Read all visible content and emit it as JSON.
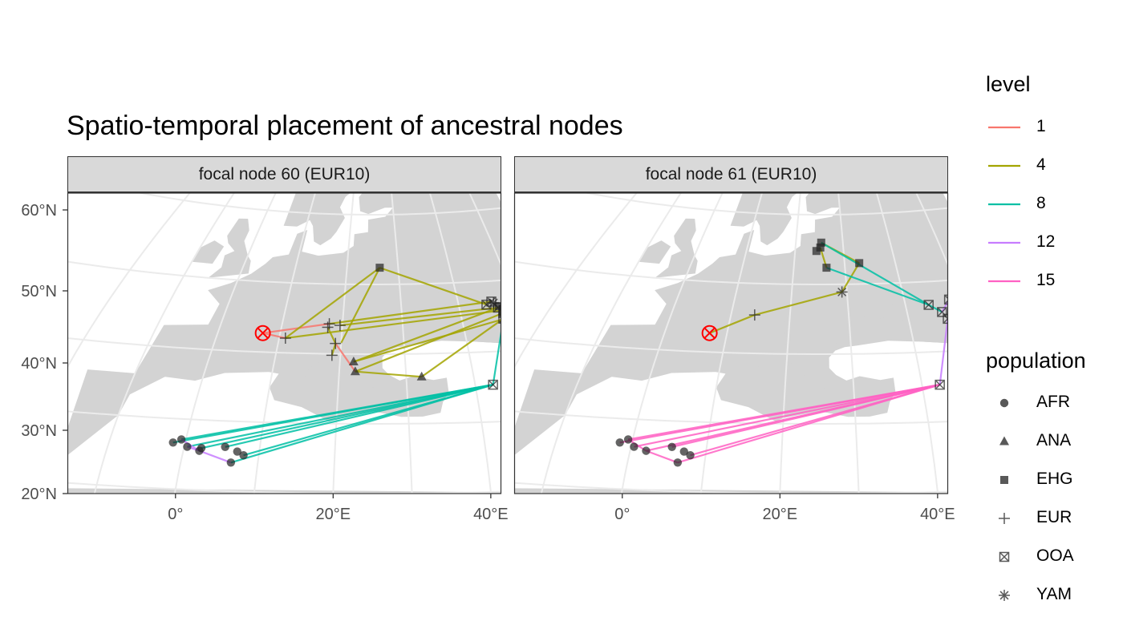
{
  "title": "Spatio-temporal placement of ancestral nodes",
  "panels": [
    {
      "label": "focal node 60 (EUR10)"
    },
    {
      "label": "focal node 61 (EUR10)"
    }
  ],
  "legend": {
    "level": {
      "title": "level",
      "items": [
        {
          "label": "1",
          "color": "#F8766D"
        },
        {
          "label": "4",
          "color": "#A3A500"
        },
        {
          "label": "8",
          "color": "#00BFA4"
        },
        {
          "label": "12",
          "color": "#C77CFF"
        },
        {
          "label": "15",
          "color": "#FF61C3"
        }
      ]
    },
    "population": {
      "title": "population",
      "items": [
        {
          "label": "AFR",
          "shape": "circle"
        },
        {
          "label": "ANA",
          "shape": "triangle"
        },
        {
          "label": "EHG",
          "shape": "square"
        },
        {
          "label": "EUR",
          "shape": "plus"
        },
        {
          "label": "OOA",
          "shape": "boxed-x"
        },
        {
          "label": "YAM",
          "shape": "asterisk"
        }
      ]
    }
  },
  "chart_data": {
    "type": "scatter",
    "title": "Spatio-temporal placement of ancestral nodes",
    "xlabel": "",
    "ylabel": "",
    "x_ticks": [
      "0°",
      "20°E",
      "40°E"
    ],
    "y_ticks": [
      "20°N",
      "30°N",
      "40°N",
      "50°N",
      "60°N"
    ],
    "xlim": [
      -16,
      57
    ],
    "ylim": [
      20,
      63
    ],
    "grid": true,
    "legend_position": "right",
    "focal_marker_color": "#FF0000",
    "panels": [
      {
        "label": "focal node 60 (EUR10)",
        "focal": {
          "lon": 7.2,
          "lat": 42.7
        },
        "points": [
          {
            "population": "EUR",
            "lon": 11.0,
            "lat": 42.1
          },
          {
            "population": "EUR",
            "lon": 17.8,
            "lat": 44.3
          },
          {
            "population": "EUR",
            "lon": 17.6,
            "lat": 43.8
          },
          {
            "population": "EUR",
            "lon": 19.6,
            "lat": 44.1
          },
          {
            "population": "EUR",
            "lon": 19.1,
            "lat": 41.5
          },
          {
            "population": "EUR",
            "lon": 18.7,
            "lat": 39.8
          },
          {
            "population": "ANA",
            "lon": 22.1,
            "lat": 38.9
          },
          {
            "population": "ANA",
            "lon": 22.4,
            "lat": 37.5
          },
          {
            "population": "ANA",
            "lon": 32.3,
            "lat": 36.7
          },
          {
            "population": "EHG",
            "lon": 26.4,
            "lat": 52.4
          },
          {
            "population": "EHG",
            "lon": 46.8,
            "lat": 46.4
          },
          {
            "population": "EHG",
            "lon": 47.3,
            "lat": 45.9
          },
          {
            "population": "EHG",
            "lon": 48.0,
            "lat": 46.7
          },
          {
            "population": "OOA",
            "lon": 44.8,
            "lat": 46.7
          },
          {
            "population": "OOA",
            "lon": 45.8,
            "lat": 47.1
          },
          {
            "population": "OOA",
            "lon": 46.6,
            "lat": 46.2
          },
          {
            "population": "OOA",
            "lon": 47.4,
            "lat": 45.8
          },
          {
            "population": "OOA",
            "lon": 48.4,
            "lat": 46.8
          },
          {
            "population": "OOA",
            "lon": 47.2,
            "lat": 45.4
          },
          {
            "population": "OOA",
            "lon": 46.9,
            "lat": 44.6
          },
          {
            "population": "OOA",
            "lon": 47.8,
            "lat": 44.7
          },
          {
            "population": "OOA",
            "lon": 42.6,
            "lat": 35.3
          },
          {
            "population": "YAM",
            "lon": 46.1,
            "lat": 46.9
          },
          {
            "population": "YAM",
            "lon": 47.7,
            "lat": 46.1
          },
          {
            "population": "AFR",
            "lon": -1.6,
            "lat": 26.6
          },
          {
            "population": "AFR",
            "lon": -0.6,
            "lat": 27.1
          },
          {
            "population": "AFR",
            "lon": 0.4,
            "lat": 26.1
          },
          {
            "population": "AFR",
            "lon": 2.3,
            "lat": 26.0
          },
          {
            "population": "AFR",
            "lon": 2.1,
            "lat": 25.6
          },
          {
            "population": "AFR",
            "lon": 5.4,
            "lat": 26.3
          },
          {
            "population": "AFR",
            "lon": 7.1,
            "lat": 25.7
          },
          {
            "population": "AFR",
            "lon": 8.0,
            "lat": 25.2
          },
          {
            "population": "AFR",
            "lon": 6.5,
            "lat": 24.1
          }
        ],
        "segments": [
          {
            "level": "1",
            "from": [
              7.2,
              42.7
            ],
            "to": [
              11.0,
              42.1
            ]
          },
          {
            "level": "1",
            "from": [
              7.2,
              42.7
            ],
            "to": [
              17.8,
              44.3
            ]
          },
          {
            "level": "1",
            "from": [
              19.1,
              41.5
            ],
            "to": [
              22.4,
              37.5
            ]
          },
          {
            "level": "4",
            "from": [
              11.0,
              42.1
            ],
            "to": [
              26.4,
              52.4
            ]
          },
          {
            "level": "4",
            "from": [
              26.4,
              52.4
            ],
            "to": [
              44.8,
              46.7
            ]
          },
          {
            "level": "4",
            "from": [
              17.8,
              44.3
            ],
            "to": [
              45.8,
              47.1
            ]
          },
          {
            "level": "4",
            "from": [
              19.6,
              44.1
            ],
            "to": [
              46.6,
              46.2
            ]
          },
          {
            "level": "4",
            "from": [
              11.0,
              42.1
            ],
            "to": [
              47.4,
              45.8
            ]
          },
          {
            "level": "4",
            "from": [
              17.6,
              43.8
            ],
            "to": [
              19.1,
              41.5
            ]
          },
          {
            "level": "4",
            "from": [
              19.1,
              41.5
            ],
            "to": [
              18.7,
              39.8
            ]
          },
          {
            "level": "4",
            "from": [
              22.4,
              37.5
            ],
            "to": [
              32.3,
              36.7
            ]
          },
          {
            "level": "4",
            "from": [
              32.3,
              36.7
            ],
            "to": [
              46.9,
              44.6
            ]
          },
          {
            "level": "4",
            "from": [
              22.4,
              37.5
            ],
            "to": [
              47.2,
              45.4
            ]
          },
          {
            "level": "4",
            "from": [
              22.1,
              38.9
            ],
            "to": [
              46.6,
              46.2
            ]
          },
          {
            "level": "4",
            "from": [
              22.1,
              38.9
            ],
            "to": [
              47.8,
              44.7
            ]
          },
          {
            "level": "4",
            "from": [
              26.4,
              52.4
            ],
            "to": [
              20.0,
              41.6
            ]
          },
          {
            "level": "8",
            "from": [
              46.9,
              44.6
            ],
            "to": [
              42.6,
              35.3
            ]
          },
          {
            "level": "8",
            "from": [
              42.6,
              35.3
            ],
            "to": [
              -1.6,
              26.6
            ]
          },
          {
            "level": "8",
            "from": [
              42.6,
              35.3
            ],
            "to": [
              -0.6,
              27.1
            ]
          },
          {
            "level": "8",
            "from": [
              42.6,
              35.3
            ],
            "to": [
              0.4,
              26.1
            ]
          },
          {
            "level": "8",
            "from": [
              42.6,
              35.3
            ],
            "to": [
              2.3,
              26.0
            ]
          },
          {
            "level": "8",
            "from": [
              42.6,
              35.3
            ],
            "to": [
              5.4,
              26.3
            ]
          },
          {
            "level": "8",
            "from": [
              42.6,
              35.3
            ],
            "to": [
              8.0,
              25.2
            ]
          },
          {
            "level": "8",
            "from": [
              42.6,
              35.3
            ],
            "to": [
              6.5,
              24.1
            ]
          },
          {
            "level": "12",
            "from": [
              0.4,
              26.1
            ],
            "to": [
              2.1,
              25.6
            ]
          },
          {
            "level": "12",
            "from": [
              2.1,
              25.6
            ],
            "to": [
              6.5,
              24.1
            ]
          },
          {
            "level": "12",
            "from": [
              -0.6,
              27.1
            ],
            "to": [
              2.1,
              25.6
            ]
          }
        ]
      },
      {
        "label": "focal node 61 (EUR10)",
        "focal": {
          "lon": 7.2,
          "lat": 42.7
        },
        "points": [
          {
            "population": "EUR",
            "lon": 14.0,
            "lat": 45.5
          },
          {
            "population": "YAM",
            "lon": 29.1,
            "lat": 48.9
          },
          {
            "population": "EHG",
            "lon": 25.4,
            "lat": 56.0
          },
          {
            "population": "EHG",
            "lon": 25.2,
            "lat": 55.3
          },
          {
            "population": "EHG",
            "lon": 24.4,
            "lat": 54.8
          },
          {
            "population": "EHG",
            "lon": 26.4,
            "lat": 52.4
          },
          {
            "population": "EHG",
            "lon": 32.9,
            "lat": 53.0
          },
          {
            "population": "OOA",
            "lon": 44.0,
            "lat": 46.7
          },
          {
            "population": "OOA",
            "lon": 45.9,
            "lat": 45.6
          },
          {
            "population": "OOA",
            "lon": 47.8,
            "lat": 47.3
          },
          {
            "population": "OOA",
            "lon": 46.5,
            "lat": 44.6
          },
          {
            "population": "OOA",
            "lon": 48.0,
            "lat": 44.6
          },
          {
            "population": "OOA",
            "lon": 42.6,
            "lat": 35.3
          },
          {
            "population": "AFR",
            "lon": -1.6,
            "lat": 26.6
          },
          {
            "population": "AFR",
            "lon": -0.6,
            "lat": 27.1
          },
          {
            "population": "AFR",
            "lon": 0.4,
            "lat": 26.1
          },
          {
            "population": "AFR",
            "lon": 2.1,
            "lat": 25.6
          },
          {
            "population": "AFR",
            "lon": 5.4,
            "lat": 26.3
          },
          {
            "population": "AFR",
            "lon": 7.1,
            "lat": 25.7
          },
          {
            "population": "AFR",
            "lon": 8.0,
            "lat": 25.2
          },
          {
            "population": "AFR",
            "lon": 6.5,
            "lat": 24.1
          }
        ],
        "segments": [
          {
            "level": "4",
            "from": [
              7.2,
              42.7
            ],
            "to": [
              14.0,
              45.5
            ]
          },
          {
            "level": "4",
            "from": [
              14.0,
              45.5
            ],
            "to": [
              29.1,
              48.9
            ]
          },
          {
            "level": "4",
            "from": [
              29.1,
              48.9
            ],
            "to": [
              32.9,
              53.0
            ]
          },
          {
            "level": "4",
            "from": [
              32.9,
              53.0
            ],
            "to": [
              25.4,
              56.0
            ]
          },
          {
            "level": "4",
            "from": [
              25.2,
              55.3
            ],
            "to": [
              26.4,
              52.4
            ]
          },
          {
            "level": "8",
            "from": [
              25.4,
              56.0
            ],
            "to": [
              44.0,
              46.7
            ]
          },
          {
            "level": "8",
            "from": [
              26.4,
              52.4
            ],
            "to": [
              44.0,
              46.7
            ]
          },
          {
            "level": "8",
            "from": [
              44.0,
              46.7
            ],
            "to": [
              45.9,
              45.6
            ]
          },
          {
            "level": "12",
            "from": [
              45.9,
              45.6
            ],
            "to": [
              47.8,
              47.3
            ]
          },
          {
            "level": "12",
            "from": [
              46.5,
              44.6
            ],
            "to": [
              42.6,
              35.3
            ]
          },
          {
            "level": "15",
            "from": [
              42.6,
              35.3
            ],
            "to": [
              -1.6,
              26.6
            ]
          },
          {
            "level": "15",
            "from": [
              42.6,
              35.3
            ],
            "to": [
              -0.6,
              27.1
            ]
          },
          {
            "level": "15",
            "from": [
              42.6,
              35.3
            ],
            "to": [
              0.4,
              26.1
            ]
          },
          {
            "level": "15",
            "from": [
              42.6,
              35.3
            ],
            "to": [
              2.1,
              25.6
            ]
          },
          {
            "level": "15",
            "from": [
              42.6,
              35.3
            ],
            "to": [
              5.4,
              26.3
            ]
          },
          {
            "level": "15",
            "from": [
              42.6,
              35.3
            ],
            "to": [
              8.0,
              25.2
            ]
          },
          {
            "level": "15",
            "from": [
              42.6,
              35.3
            ],
            "to": [
              6.5,
              24.1
            ]
          },
          {
            "level": "15",
            "from": [
              -0.6,
              27.1
            ],
            "to": [
              2.1,
              25.6
            ]
          },
          {
            "level": "15",
            "from": [
              2.1,
              25.6
            ],
            "to": [
              6.5,
              24.1
            ]
          }
        ]
      }
    ]
  }
}
